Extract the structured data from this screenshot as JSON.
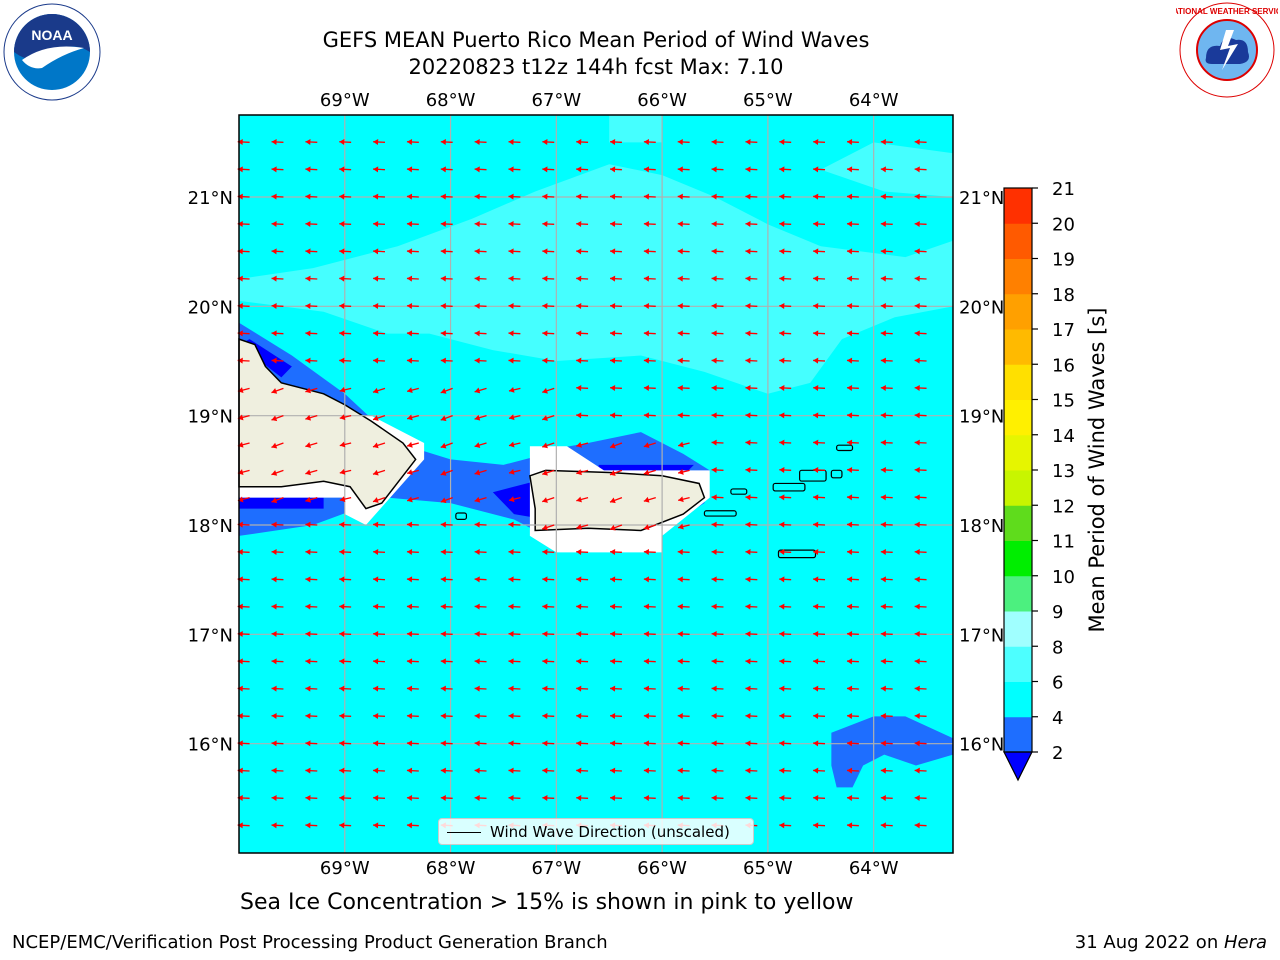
{
  "title": {
    "line1": "GEFS MEAN Puerto Rico Mean Period of Wind Waves",
    "line2": "20220823 t12z 144h fcst   Max: 7.10"
  },
  "map": {
    "lon_ticks": [
      "69°W",
      "68°W",
      "67°W",
      "66°W",
      "65°W",
      "64°W"
    ],
    "lat_ticks": [
      "21°N",
      "20°N",
      "19°N",
      "18°N",
      "17°N",
      "16°N"
    ],
    "lon_range": [
      -70.0,
      -63.25
    ],
    "lat_range": [
      15.0,
      21.75
    ],
    "grid": true,
    "wind_direction": "east to west (arrows point west-southwest)",
    "arrow_color": "#ff0000",
    "ocean_color": "#00ffff",
    "land_color": "#efefdf",
    "legend": "Wind Wave Direction (unscaled)"
  },
  "colorbar": {
    "label": "Mean Period of Wind Waves [s]",
    "ticks": [
      "2",
      "4",
      "6",
      "8",
      "9",
      "10",
      "11",
      "12",
      "13",
      "14",
      "15",
      "16",
      "17",
      "18",
      "19",
      "20",
      "21"
    ],
    "levels": [
      {
        "from": 2,
        "to": 4,
        "color": "#1e6eff"
      },
      {
        "from": 4,
        "to": 6,
        "color": "#00ffff"
      },
      {
        "from": 6,
        "to": 8,
        "color": "#4dffff"
      },
      {
        "from": 8,
        "to": 9,
        "color": "#a0ffff"
      },
      {
        "from": 9,
        "to": 10,
        "color": "#4cf07f"
      },
      {
        "from": 10,
        "to": 11,
        "color": "#00ee00"
      },
      {
        "from": 11,
        "to": 12,
        "color": "#5fdc1c"
      },
      {
        "from": 12,
        "to": 13,
        "color": "#c8f500"
      },
      {
        "from": 13,
        "to": 14,
        "color": "#e6f500"
      },
      {
        "from": 14,
        "to": 15,
        "color": "#fff000"
      },
      {
        "from": 15,
        "to": 16,
        "color": "#ffe000"
      },
      {
        "from": 16,
        "to": 17,
        "color": "#ffba00"
      },
      {
        "from": 17,
        "to": 18,
        "color": "#ffa000"
      },
      {
        "from": 18,
        "to": 19,
        "color": "#ff8000"
      },
      {
        "from": 19,
        "to": 20,
        "color": "#ff5a00"
      },
      {
        "from": 20,
        "to": 21,
        "color": "#ff3000"
      },
      {
        "from": 21,
        "to": 22,
        "color": "#ff0000"
      }
    ],
    "under_color": "#0000ff"
  },
  "subcaption": "Sea Ice Concentration > 15% is shown in pink to yellow",
  "footer": {
    "left": "NCEP/EMC/Verification Post Processing Product Generation Branch",
    "right_date": "31 Aug 2022 on ",
    "right_host": "Hera"
  },
  "logos": {
    "noaa": "NOAA",
    "nws": "NATIONAL WEATHER SERVICE"
  }
}
